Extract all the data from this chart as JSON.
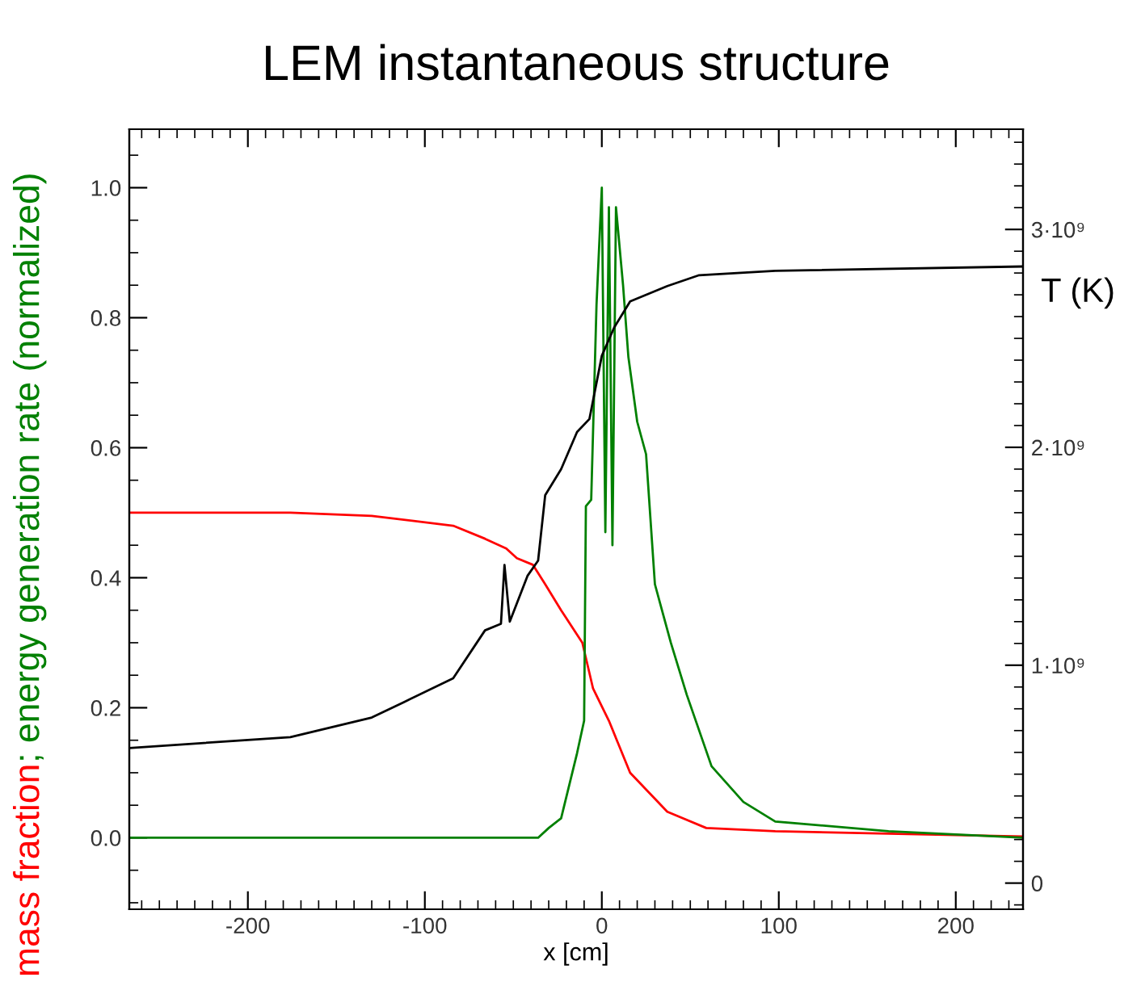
{
  "chart_data": {
    "type": "line",
    "title": "LEM instantaneous structure",
    "xlabel": "x [cm]",
    "ylabel": "mass fraction; energy generation rate (normalized)",
    "y2label": "T (K)",
    "xlim": [
      -267,
      238
    ],
    "xticks": [
      -200,
      -100,
      0,
      100,
      200
    ],
    "ylim": [
      -0.11,
      1.09
    ],
    "yticks": [
      {
        "value": 0,
        "label": "0.0"
      },
      {
        "value": 0.2,
        "label": "0.2"
      },
      {
        "value": 0.4,
        "label": "0.4"
      },
      {
        "value": 0.6,
        "label": "0.6"
      },
      {
        "value": 0.8,
        "label": "0.8"
      },
      {
        "value": 1,
        "label": "1.0"
      }
    ],
    "y2lim": [
      -120000000.0,
      3460000000.0
    ],
    "y2ticks": [
      0,
      {
        "value": 1000000000.0,
        "label": "1·10⁹"
      },
      {
        "value": 2000000000.0,
        "label": "2·10⁹"
      },
      {
        "value": 3000000000.0,
        "label": "3·10⁹"
      }
    ],
    "grid": false,
    "marker": "none",
    "line_style": "solid",
    "series": [
      {
        "color": "#ff0000",
        "x": [
          -267,
          -176,
          -130,
          -84,
          -66,
          -54,
          -48,
          -39,
          -32,
          -23,
          -11,
          -5,
          4,
          16,
          37,
          59,
          98,
          238
        ],
        "values": [
          0.5,
          0.5,
          0.495,
          0.48,
          0.46,
          0.445,
          0.43,
          0.42,
          0.39,
          0.35,
          0.3,
          0.23,
          0.18,
          0.1,
          0.04,
          0.015,
          0.01,
          0.002
        ]
      },
      {
        "color": "#008000",
        "x": [
          -267,
          -36,
          -30,
          -23,
          -14,
          -10,
          -9,
          -6,
          -3,
          0,
          2,
          4,
          6,
          8,
          12,
          15,
          20,
          25,
          30,
          39,
          48,
          62,
          80,
          98,
          162,
          238
        ],
        "values": [
          0,
          0,
          0.015,
          0.03,
          0.13,
          0.18,
          0.51,
          0.52,
          0.82,
          1.0,
          0.47,
          0.97,
          0.45,
          0.97,
          0.85,
          0.74,
          0.64,
          0.59,
          0.39,
          0.3,
          0.22,
          0.11,
          0.055,
          0.025,
          0.01,
          0
        ]
      },
      {
        "color": "#000000",
        "axis": "y2",
        "x": [
          -267,
          -176,
          -130,
          -112,
          -84,
          -66,
          -57,
          -55,
          -52,
          -42,
          -36,
          -32,
          -23,
          -14,
          -7,
          0,
          7,
          16,
          37,
          55,
          98,
          238
        ],
        "values": [
          620000000.0,
          670000000.0,
          760000000.0,
          830000000.0,
          940000000.0,
          1160000000.0,
          1190000000.0,
          1460000000.0,
          1200000000.0,
          1410000000.0,
          1480000000.0,
          1780000000.0,
          1900000000.0,
          2070000000.0,
          2130000000.0,
          2420000000.0,
          2550000000.0,
          2670000000.0,
          2740000000.0,
          2790000000.0,
          2810000000.0,
          2830000000.0
        ]
      }
    ]
  }
}
